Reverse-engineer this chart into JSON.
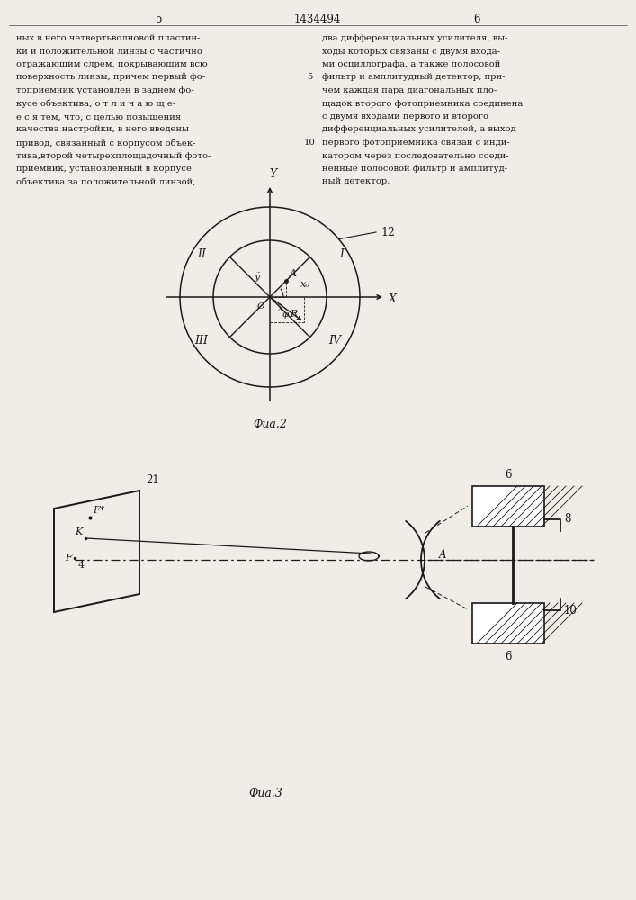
{
  "bg_color": "#f0ede8",
  "text_color": "#1a1a1a",
  "page_number_left": "5",
  "page_number_center": "1434494",
  "page_number_right": "6",
  "fig2_caption": "Фиа.2",
  "fig3_caption": "Фиа.3",
  "text_left": [
    "ных в него четвертьволновой пластин-",
    "ки и положительной линзы с частично",
    "отражающим слрем, покрывающим всю",
    "поверхность линзы, причем первый фо-",
    "топриемник установлен в заднем фо-",
    "кусе объектива, о т л и ч а ю щ е-",
    "e с я тем, что, с целью повышения",
    "качества настройки, в него введены",
    "привод, связанный с корпусом объек-",
    "тива,второй четырехплощадочный фото-",
    "приемник, установленный в корпусе",
    "объектива за положительной линзой,"
  ],
  "text_right": [
    "два дифференциальных усилителя, вы-",
    "ходы которых связаны с двумя входа-",
    "ми осциллографа, а также полосовой",
    "фильтр и амплитудный детектор, при-",
    "чем каждая пара диагональных пло-",
    "щадок второго фотоприемника соединена",
    "с двумя входами первого и второго",
    "дифференциальных усилителей, а выход",
    "первого фотоприемника связан с инди-",
    "катором через последовательно соеди-",
    "ненные полосовой фильтр и амплитуд-",
    "ный детектор."
  ]
}
